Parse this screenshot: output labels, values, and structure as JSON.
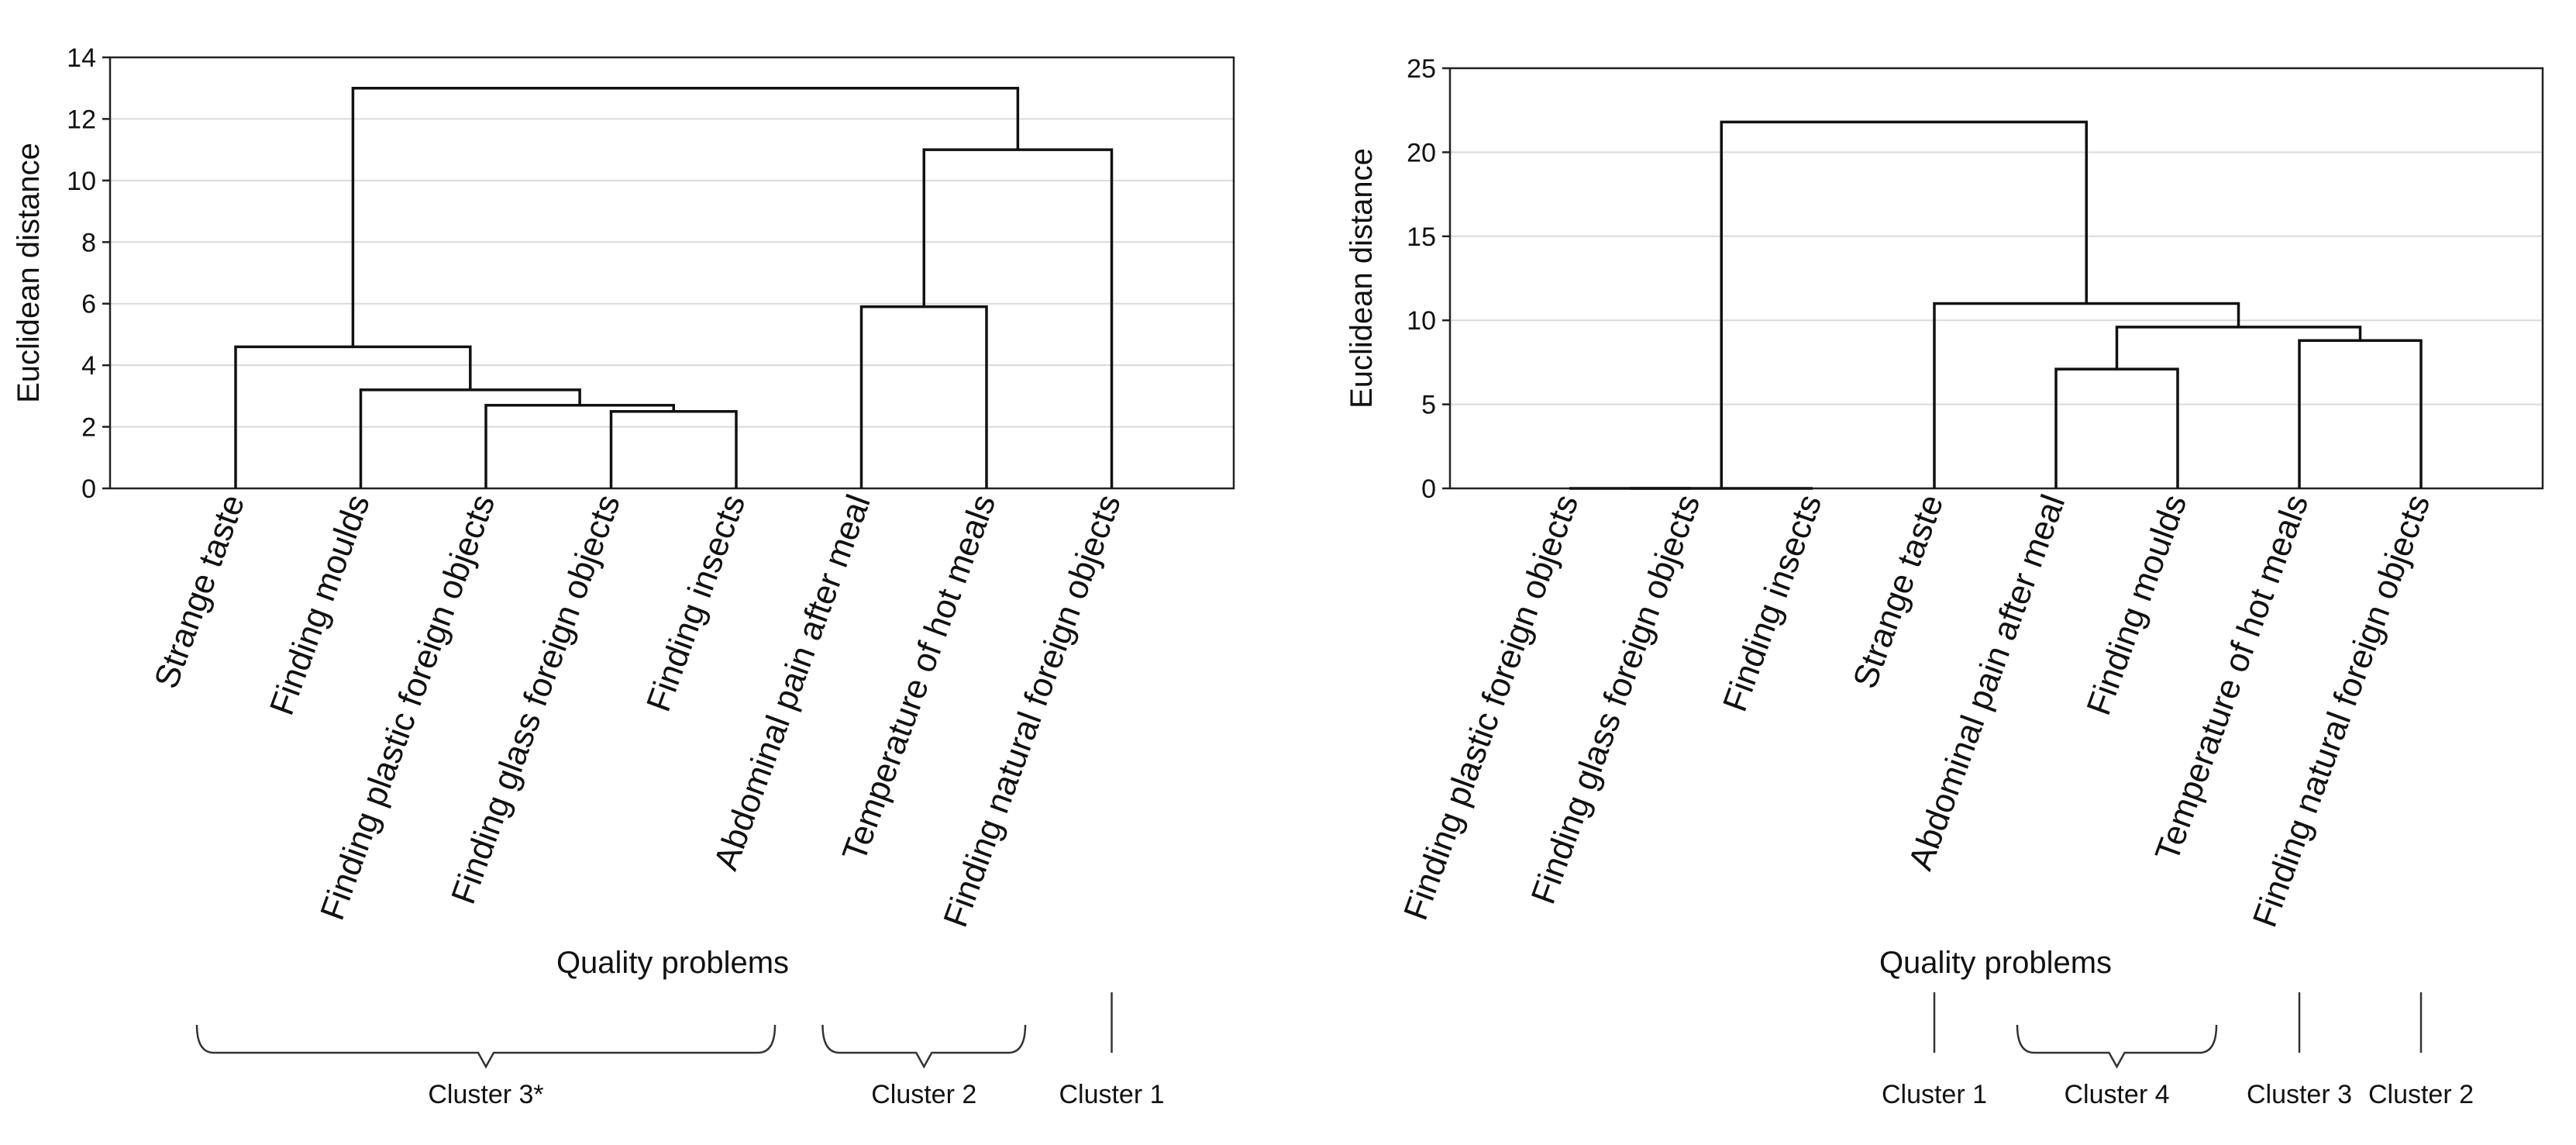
{
  "chart_data": [
    {
      "type": "dendrogram",
      "ylabel": "Euclidean distance",
      "xlabel": "Quality problems",
      "ylim": [
        0,
        14
      ],
      "yticks": [
        0,
        2,
        4,
        6,
        8,
        10,
        12,
        14
      ],
      "grid": true,
      "leaves": [
        "Strange taste",
        "Finding moulds",
        "Finding plastic foreign objects",
        "Finding glass foreign objects",
        "Finding insects",
        "Abdominal pain after meal",
        "Temperature of hot meals",
        "Finding natural foreign objects"
      ],
      "merges": [
        {
          "left": 3,
          "right": 4,
          "height": 2.5
        },
        {
          "left": 2,
          "right": "m0",
          "height": 2.7
        },
        {
          "left": 1,
          "right": "m1",
          "height": 3.2
        },
        {
          "left": 0,
          "right": "m2",
          "height": 4.6
        },
        {
          "left": 5,
          "right": 6,
          "height": 5.9
        },
        {
          "left": "m4",
          "right": 7,
          "height": 11.0
        },
        {
          "left": "m3",
          "right": "m5",
          "height": 13.0
        }
      ],
      "clusters": [
        {
          "label": "Cluster 3*",
          "from": 0,
          "to": 4
        },
        {
          "label": "Cluster 2",
          "from": 5,
          "to": 6
        },
        {
          "label": "Cluster 1",
          "from": 7,
          "to": 7
        }
      ]
    },
    {
      "type": "dendrogram",
      "ylabel": "Euclidean distance",
      "xlabel": "Quality problems",
      "ylim": [
        0,
        25
      ],
      "yticks": [
        0,
        5,
        10,
        15,
        20,
        25
      ],
      "grid": true,
      "leaves": [
        "Finding plastic foreign objects",
        "Finding glass foreign objects",
        "Finding insects",
        "Strange taste",
        "Abdominal pain after meal",
        "Finding moulds",
        "Temperature of hot meals",
        "Finding natural foreign objects"
      ],
      "merges": [
        {
          "left": 0,
          "right": 1,
          "height": 0
        },
        {
          "left": "m0",
          "right": 2,
          "height": 0
        },
        {
          "left": 4,
          "right": 5,
          "height": 7.1
        },
        {
          "left": 6,
          "right": 7,
          "height": 8.8
        },
        {
          "left": "m2",
          "right": "m3",
          "height": 9.6
        },
        {
          "left": 3,
          "right": "m4",
          "height": 11.0
        },
        {
          "left": "m1",
          "right": "m5",
          "height": 21.8
        }
      ],
      "clusters": [
        {
          "label": "Cluster 1",
          "from": 3,
          "to": 3
        },
        {
          "label": "Cluster 4",
          "from": 4,
          "to": 5
        },
        {
          "label": "Cluster 3",
          "from": 6,
          "to": 6
        },
        {
          "label": "Cluster 2",
          "from": 7,
          "to": 7
        }
      ]
    }
  ]
}
